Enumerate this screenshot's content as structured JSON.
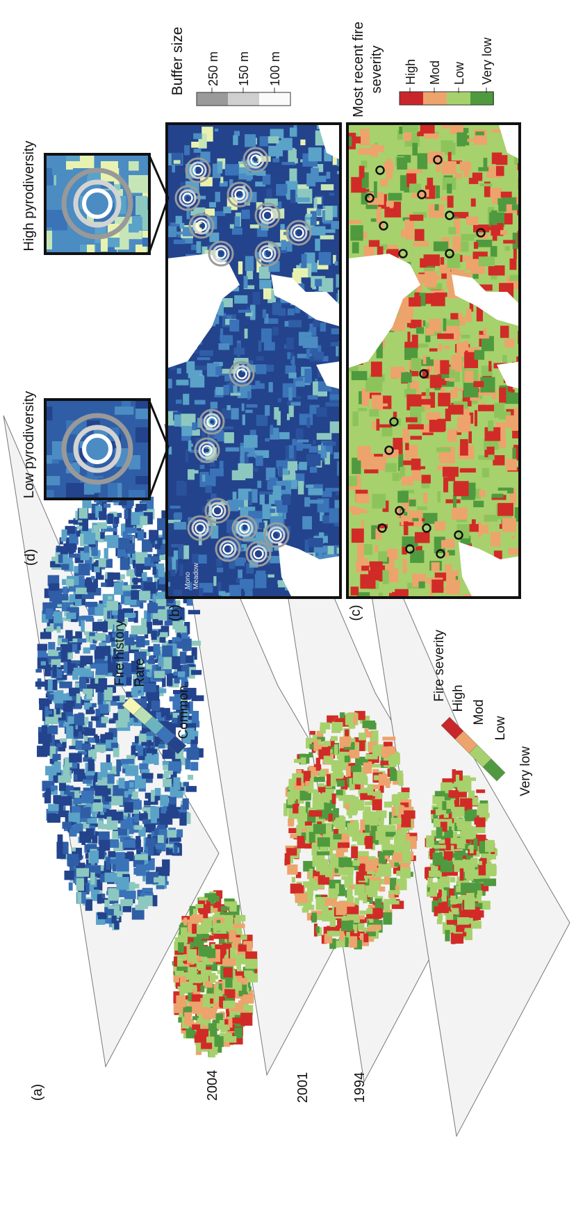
{
  "panel_a": {
    "label": "(a)",
    "layers": [
      "2004",
      "2001",
      "1994"
    ],
    "fire_history_legend": {
      "title": "Fire history",
      "labels": [
        "Rare",
        "Common"
      ]
    },
    "fire_severity_legend": {
      "title": "Fire severity",
      "labels": [
        "High",
        "Mod",
        "Low",
        "Very low"
      ]
    }
  },
  "panel_b": {
    "label": "(b)",
    "site_label": [
      "Mono",
      "Meadow"
    ]
  },
  "panel_c": {
    "label": "(c)"
  },
  "panel_d": {
    "label": "(d)",
    "insets": [
      "Low pyrodiversity",
      "High pyrodiversity"
    ]
  },
  "buffer_legend": {
    "title": "Buffer size",
    "labels": [
      "250 m",
      "150 m",
      "100 m"
    ]
  },
  "severity_legend": {
    "title_lines": [
      "Most recent fire",
      "severity"
    ],
    "labels": [
      "High",
      "Mod",
      "Low",
      "Very low"
    ]
  }
}
